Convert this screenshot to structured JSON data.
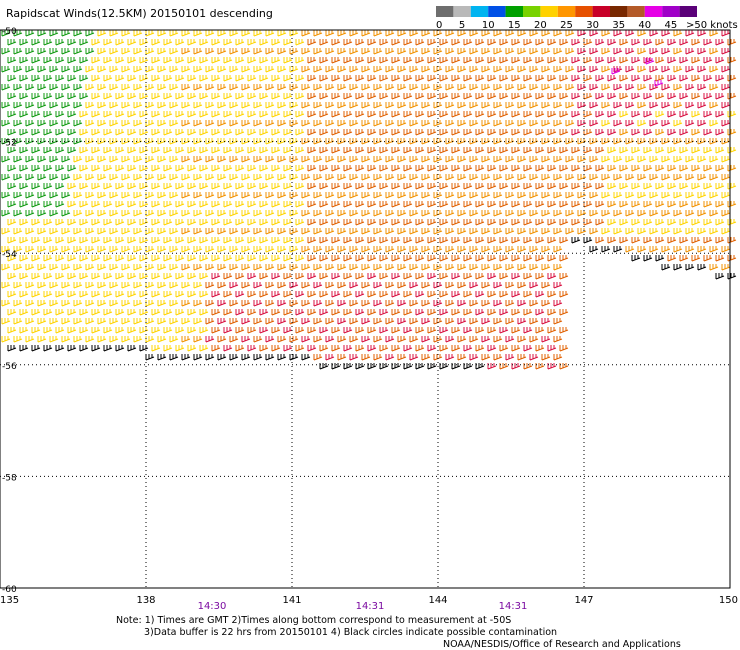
{
  "title": "Rapidscat Winds(12.5KM) 20150101 descending",
  "colorbar": {
    "labels": [
      "0",
      "5",
      "10",
      "15",
      "20",
      "25",
      "30",
      "35",
      "40",
      "45",
      ">50 knots"
    ],
    "colors": [
      "#6e6e6e",
      "#b9b9b9",
      "#00b4f0",
      "#0050e6",
      "#00a000",
      "#78d200",
      "#ffd200",
      "#ff9600",
      "#e65000",
      "#c80028",
      "#782800",
      "#b45a28",
      "#e600e6",
      "#a000c8",
      "#5a0078"
    ]
  },
  "map": {
    "lat_range": [
      -60,
      -50
    ],
    "lon_range": [
      135,
      150
    ],
    "lat_labels": [
      "-50",
      "-52",
      "-54",
      "-56",
      "-58",
      "-60"
    ],
    "lon_labels": [
      "135",
      "138",
      "141",
      "144",
      "147",
      "150"
    ],
    "times": [
      "14:30",
      "14:31",
      "14:31"
    ],
    "swath_colors": {
      "green": "#109a10",
      "yellow": "#ffd400",
      "orange": "#f29200",
      "darkorange": "#e06000",
      "red": "#d81040",
      "magenta": "#e000e0",
      "black": "#000000"
    }
  },
  "notes": {
    "line1": "Note: 1) Times are GMT 2)Times along bottom correspond to measurement at -50S",
    "line2": "3)Data buffer is 22 hrs from 20150101 4) Black circles indicate possible contamination",
    "line3": "NOAA/NESDIS/Office of Research and Applications"
  }
}
